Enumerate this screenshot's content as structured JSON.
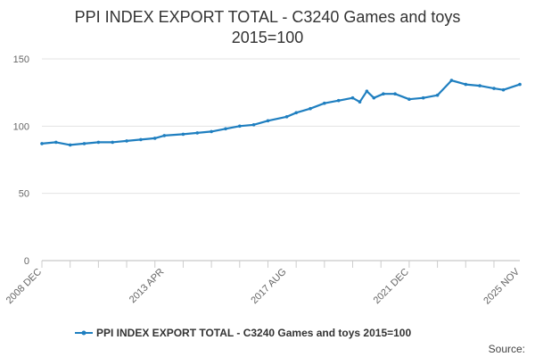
{
  "chart_data": {
    "type": "line",
    "title_line1": "PPI INDEX EXPORT TOTAL - C3240 Games and toys",
    "title_line2": "2015=100",
    "xlabel": "",
    "ylabel": "",
    "x_start": "2008 DEC",
    "x_end": "2025 NOV",
    "x_ticks": [
      "2008 DEC",
      "2013 APR",
      "2017 AUG",
      "2021 DEC",
      "2025 NOV"
    ],
    "y_ticks": [
      0,
      50,
      100,
      150
    ],
    "ylim": [
      0,
      150
    ],
    "grid": true,
    "legend_position": "bottom",
    "series": [
      {
        "name": "PPI INDEX EXPORT TOTAL - C3240 Games and toys 2015=100",
        "color": "#1f7fc0",
        "points": [
          [
            "2008 DEC",
            87
          ],
          [
            "2009 JUN",
            88
          ],
          [
            "2009 DEC",
            86
          ],
          [
            "2010 JUN",
            87
          ],
          [
            "2010 DEC",
            88
          ],
          [
            "2011 JUN",
            88
          ],
          [
            "2011 DEC",
            89
          ],
          [
            "2012 JUN",
            90
          ],
          [
            "2012 DEC",
            91
          ],
          [
            "2013 APR",
            93
          ],
          [
            "2013 DEC",
            94
          ],
          [
            "2014 JUN",
            95
          ],
          [
            "2014 DEC",
            96
          ],
          [
            "2015 JUN",
            98
          ],
          [
            "2015 DEC",
            100
          ],
          [
            "2016 JUN",
            101
          ],
          [
            "2016 DEC",
            104
          ],
          [
            "2017 AUG",
            107
          ],
          [
            "2017 DEC",
            110
          ],
          [
            "2018 JUN",
            113
          ],
          [
            "2018 DEC",
            117
          ],
          [
            "2019 JUN",
            119
          ],
          [
            "2019 DEC",
            121
          ],
          [
            "2020 MAR",
            118
          ],
          [
            "2020 JUN",
            126
          ],
          [
            "2020 SEP",
            121
          ],
          [
            "2021 JAN",
            124
          ],
          [
            "2021 JUN",
            124
          ],
          [
            "2021 DEC",
            120
          ],
          [
            "2022 JUN",
            121
          ],
          [
            "2022 DEC",
            123
          ],
          [
            "2023 JUN",
            134
          ],
          [
            "2023 DEC",
            131
          ],
          [
            "2024 JUN",
            130
          ],
          [
            "2024 DEC",
            128
          ],
          [
            "2025 APR",
            127
          ],
          [
            "2025 NOV",
            131
          ]
        ]
      }
    ],
    "source_label": "Source:"
  }
}
